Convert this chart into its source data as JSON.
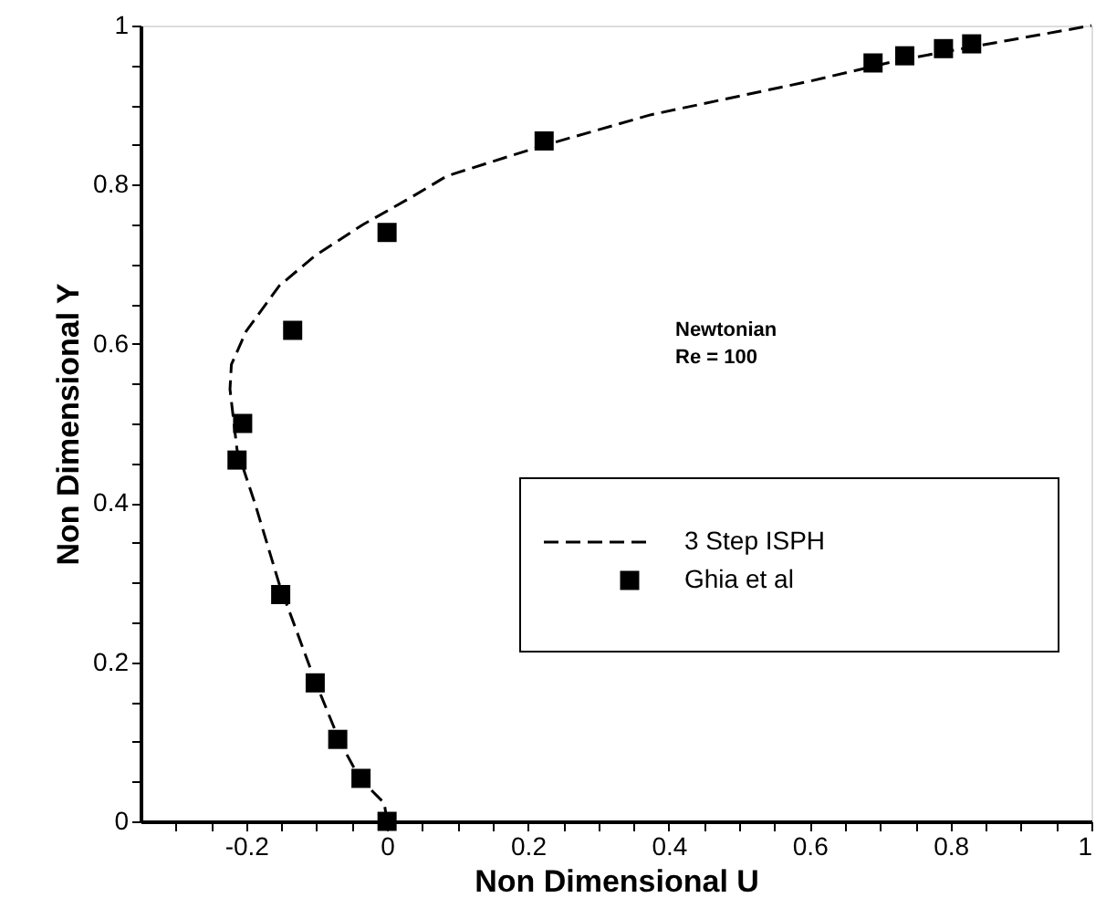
{
  "chart_data": {
    "type": "line",
    "xlabel": "Non Dimensional U",
    "ylabel": "Non Dimensional Y",
    "annotations": [
      "Newtonian",
      "Re = 100"
    ],
    "xlim": [
      -0.35,
      1
    ],
    "ylim": [
      0,
      1
    ],
    "xticks": [
      {
        "value": -0.3,
        "label": null
      },
      {
        "value": -0.25,
        "label": null
      },
      -0.2,
      {
        "value": -0.15,
        "label": null
      },
      {
        "value": -0.1,
        "label": null
      },
      {
        "value": -0.05,
        "label": null
      },
      0,
      {
        "value": 0.05,
        "label": null
      },
      {
        "value": 0.1,
        "label": null
      },
      {
        "value": 0.15,
        "label": null
      },
      0.2,
      {
        "value": 0.25,
        "label": null
      },
      {
        "value": 0.3,
        "label": null
      },
      {
        "value": 0.35,
        "label": null
      },
      0.4,
      {
        "value": 0.45,
        "label": null
      },
      {
        "value": 0.5,
        "label": null
      },
      {
        "value": 0.55,
        "label": null
      },
      0.6,
      {
        "value": 0.65,
        "label": null
      },
      {
        "value": 0.7,
        "label": null
      },
      {
        "value": 0.75,
        "label": null
      },
      0.8,
      {
        "value": 0.85,
        "label": null
      },
      {
        "value": 0.9,
        "label": null
      },
      {
        "value": 0.95,
        "label": null
      },
      1
    ],
    "yticks": [
      0,
      {
        "value": 0.05,
        "label": null
      },
      {
        "value": 0.1,
        "label": null
      },
      {
        "value": 0.15,
        "label": null
      },
      0.2,
      {
        "value": 0.25,
        "label": null
      },
      {
        "value": 0.3,
        "label": null
      },
      {
        "value": 0.35,
        "label": null
      },
      0.4,
      {
        "value": 0.45,
        "label": null
      },
      {
        "value": 0.5,
        "label": null
      },
      {
        "value": 0.55,
        "label": null
      },
      0.6,
      {
        "value": 0.65,
        "label": null
      },
      {
        "value": 0.7,
        "label": null
      },
      {
        "value": 0.75,
        "label": null
      },
      0.8,
      {
        "value": 0.85,
        "label": null
      },
      {
        "value": 0.9,
        "label": null
      },
      {
        "value": 0.95,
        "label": null
      },
      1
    ],
    "grid": false,
    "legend": "right",
    "series": [
      {
        "name": "3 Step ISPH",
        "color": "#000000",
        "line_style": "dashed",
        "marker": "none",
        "x": [
          0,
          -0.004,
          -0.038,
          -0.067,
          -0.102,
          -0.153,
          -0.187,
          -0.213,
          -0.223,
          -0.221,
          -0.2,
          -0.153,
          -0.102,
          -0.034,
          0.034,
          0.085,
          0.221,
          0.375,
          0.6,
          0.73,
          0.886,
          1
        ],
        "values": [
          0,
          0.023,
          0.053,
          0.1,
          0.176,
          0.298,
          0.398,
          0.467,
          0.543,
          0.574,
          0.616,
          0.673,
          0.711,
          0.75,
          0.784,
          0.811,
          0.849,
          0.888,
          0.93,
          0.957,
          0.982,
          1
        ]
      },
      {
        "name": "Ghia et al",
        "type": "scatter",
        "color": "#000000",
        "marker": "square",
        "x": [
          0,
          -0.037,
          -0.07,
          -0.102,
          -0.151,
          -0.213,
          -0.205,
          -0.134,
          0,
          0.223,
          0.69,
          0.735,
          0.79,
          0.83
        ],
        "values": [
          0,
          0.054,
          0.103,
          0.174,
          0.285,
          0.454,
          0.5,
          0.617,
          0.74,
          0.855,
          0.953,
          0.962,
          0.971,
          0.977
        ]
      }
    ]
  }
}
